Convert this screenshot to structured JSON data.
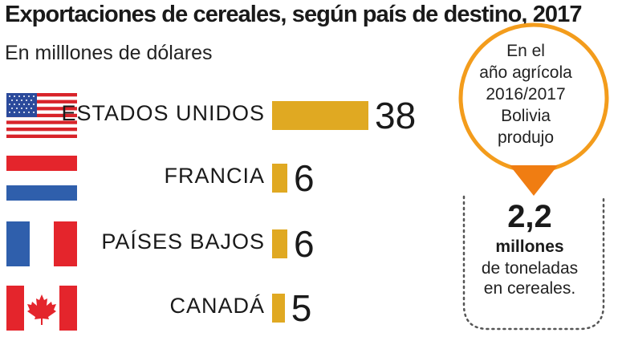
{
  "header": {
    "title": "Exportaciones de cereales, según país de destino, 2017",
    "subtitle": "En milllones de dólares"
  },
  "colors": {
    "bar": "#e0a922",
    "callout_border": "#f39c1c",
    "callout_arrow": "#f07d12",
    "dots": "#555555"
  },
  "chart_data": {
    "type": "bar",
    "orientation": "horizontal",
    "title": "Exportaciones de cereales, según país de destino, 2017",
    "subtitle": "En milllones de dólares",
    "categories": [
      "ESTADOS UNIDOS",
      "FRANCIA",
      "PAÍSES BAJOS",
      "CANADÁ"
    ],
    "values": [
      38,
      6,
      6,
      5
    ],
    "data_labels": [
      "38",
      "6",
      "6",
      "5"
    ],
    "flags": [
      "usa-flag-icon",
      "netherlands-flag-icon",
      "france-flag-icon",
      "canada-flag-icon"
    ]
  },
  "callout": {
    "lines": [
      "En el",
      "año agrícola",
      "2016/2017",
      "Bolivia",
      "produjo"
    ],
    "value": "2,2",
    "unit": "millones",
    "desc_lines": [
      "de toneladas",
      "en cereales."
    ]
  }
}
